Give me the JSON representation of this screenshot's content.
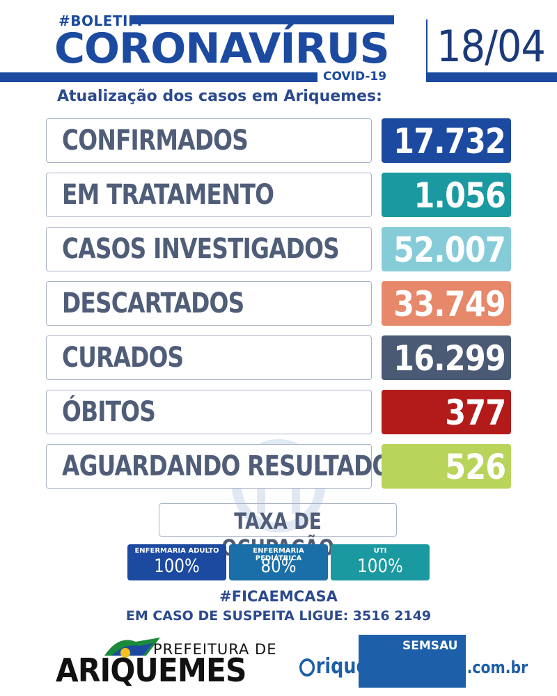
{
  "header": {
    "hashtag": "#BOLETIM",
    "title": "CORONAVÍRUS",
    "subtitle_tag": "COVID-19",
    "date": "18/04",
    "update_text": "Atualização dos casos em Ariquemes:"
  },
  "rows": [
    {
      "label": "CONFIRMADOS",
      "value": "17.732",
      "color": "#1b4aa0"
    },
    {
      "label": "EM TRATAMENTO",
      "value": "1.056",
      "color": "#1a9aa0"
    },
    {
      "label": "CASOS INVESTIGADOS",
      "value": "52.007",
      "color": "#86ccd8"
    },
    {
      "label": "DESCARTADOS",
      "value": "33.749",
      "color": "#e8886a"
    },
    {
      "label": "CURADOS",
      "value": "16.299",
      "color": "#4a5a74"
    },
    {
      "label": "ÓBITOS",
      "value": "377",
      "color": "#b31b1b"
    },
    {
      "label": "AGUARDANDO RESULTADO",
      "value": "526",
      "color": "#b8d45a"
    }
  ],
  "occupancy": {
    "title": "TAXA DE OCUPAÇÃO",
    "items": [
      {
        "label": "ENFERMARIA ADULTO",
        "value": "100%",
        "color": "#1b4aa0"
      },
      {
        "label": "ENFERMARIA PEDIÁTRICA",
        "value": "80%",
        "color": "#1a6fa8"
      },
      {
        "label": "UTI",
        "value": "100%",
        "color": "#1a9aa0"
      }
    ]
  },
  "footer": {
    "hashtag": "#FICAEMCASA",
    "phone_text": "EM CASO DE SUSPEITA LIGUE: 3516 2149",
    "pref_small": "PREFEITURA DE",
    "pref_big": "ARIQUEMES",
    "semsau": "SEMSAU",
    "site": "riquemesagora",
    "site_suffix": ".com.br"
  }
}
